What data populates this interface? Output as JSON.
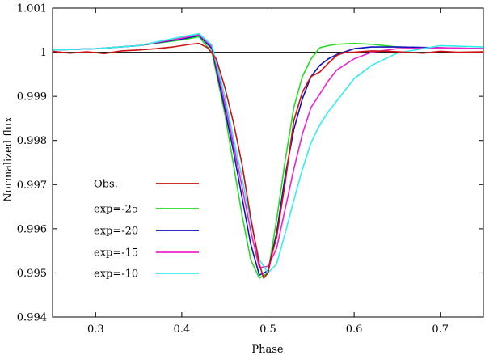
{
  "chart_data": {
    "type": "line",
    "title": "",
    "xlabel": "Phase",
    "ylabel": "Normalized flux",
    "xlim": [
      0.25,
      0.75
    ],
    "ylim": [
      0.994,
      1.001
    ],
    "x_ticks": [
      0.3,
      0.4,
      0.5,
      0.6,
      0.7
    ],
    "x_tick_labels": [
      "0.3",
      "0.4",
      "0.5",
      "0.6",
      "0.7"
    ],
    "y_ticks": [
      0.994,
      0.995,
      0.996,
      0.997,
      0.998,
      0.999,
      1.0,
      1.001
    ],
    "y_tick_labels": [
      "0.994",
      "0.995",
      "0.996",
      "0.997",
      "0.998",
      "0.999",
      "1",
      "1.001"
    ],
    "grid": false,
    "legend_position": "lower-left",
    "reference_line": {
      "y": 1.0,
      "color": "#000000"
    },
    "series": [
      {
        "name": "Obs.",
        "color": "#cc1111",
        "x": [
          0.25,
          0.27,
          0.29,
          0.31,
          0.33,
          0.35,
          0.37,
          0.39,
          0.41,
          0.42,
          0.43,
          0.44,
          0.45,
          0.46,
          0.47,
          0.48,
          0.49,
          0.495,
          0.5,
          0.505,
          0.51,
          0.52,
          0.53,
          0.54,
          0.55,
          0.56,
          0.57,
          0.58,
          0.59,
          0.6,
          0.62,
          0.64,
          0.66,
          0.68,
          0.7,
          0.72,
          0.75
        ],
        "y": [
          1.00002,
          0.99998,
          1.00001,
          0.99997,
          1.00003,
          1.00005,
          1.00008,
          1.00012,
          1.00018,
          1.0002,
          1.0001,
          0.99985,
          0.9992,
          0.9984,
          0.99745,
          0.99625,
          0.9952,
          0.99488,
          0.995,
          0.99545,
          0.9958,
          0.99705,
          0.99845,
          0.9991,
          0.99945,
          0.99955,
          0.99975,
          0.99993,
          1.0,
          1.0,
          1.00003,
          1.00002,
          1.0,
          0.99998,
          1.00002,
          1.0,
          1.00001
        ]
      },
      {
        "name": "exp=-25",
        "color": "#22dd22",
        "x": [
          0.25,
          0.3,
          0.35,
          0.4,
          0.42,
          0.435,
          0.45,
          0.46,
          0.47,
          0.48,
          0.49,
          0.5,
          0.51,
          0.52,
          0.53,
          0.54,
          0.55,
          0.56,
          0.57,
          0.58,
          0.6,
          0.62,
          0.65,
          0.7,
          0.75
        ],
        "y": [
          1.00005,
          1.00008,
          1.00015,
          1.00028,
          1.00035,
          1.0,
          0.9986,
          0.99745,
          0.9963,
          0.9953,
          0.99488,
          0.995,
          0.9962,
          0.99755,
          0.99875,
          0.99945,
          0.99985,
          1.0001,
          1.00015,
          1.00018,
          1.0002,
          1.00018,
          1.00012,
          1.00008,
          1.00008
        ]
      },
      {
        "name": "exp=-20",
        "color": "#1111bb",
        "x": [
          0.25,
          0.3,
          0.35,
          0.4,
          0.42,
          0.435,
          0.45,
          0.46,
          0.47,
          0.48,
          0.49,
          0.5,
          0.51,
          0.52,
          0.53,
          0.54,
          0.55,
          0.56,
          0.57,
          0.58,
          0.6,
          0.62,
          0.65,
          0.7,
          0.75
        ],
        "y": [
          1.00005,
          1.00008,
          1.00015,
          1.0003,
          1.00038,
          1.00008,
          0.9987,
          0.99775,
          0.9967,
          0.99565,
          0.99495,
          0.99505,
          0.9959,
          0.9972,
          0.99825,
          0.99895,
          0.99945,
          0.9997,
          0.99985,
          0.99995,
          1.00008,
          1.00012,
          1.00012,
          1.0001,
          1.00008
        ]
      },
      {
        "name": "exp=-15",
        "color": "#ee22cc",
        "x": [
          0.25,
          0.3,
          0.35,
          0.4,
          0.42,
          0.435,
          0.45,
          0.46,
          0.47,
          0.48,
          0.49,
          0.5,
          0.51,
          0.52,
          0.53,
          0.54,
          0.55,
          0.56,
          0.57,
          0.58,
          0.6,
          0.62,
          0.65,
          0.7,
          0.75
        ],
        "y": [
          1.00005,
          1.00008,
          1.00015,
          1.00032,
          1.0004,
          1.00012,
          0.99885,
          0.9979,
          0.99695,
          0.99595,
          0.99512,
          0.99515,
          0.99555,
          0.99645,
          0.99735,
          0.99815,
          0.99875,
          0.99905,
          0.99935,
          0.9996,
          0.99985,
          1.0,
          1.00008,
          1.0001,
          1.00008
        ]
      },
      {
        "name": "exp=-10",
        "color": "#33eeee",
        "x": [
          0.25,
          0.3,
          0.35,
          0.4,
          0.42,
          0.435,
          0.45,
          0.46,
          0.47,
          0.48,
          0.49,
          0.5,
          0.51,
          0.52,
          0.53,
          0.54,
          0.55,
          0.56,
          0.57,
          0.58,
          0.6,
          0.62,
          0.65,
          0.7,
          0.75
        ],
        "y": [
          1.00005,
          1.00008,
          1.00015,
          1.00035,
          1.00042,
          1.00016,
          0.999,
          0.99805,
          0.99715,
          0.99615,
          0.9953,
          0.995,
          0.9952,
          0.9959,
          0.99665,
          0.99735,
          0.99795,
          0.99835,
          0.99865,
          0.9989,
          0.9994,
          0.9997,
          0.99998,
          1.00015,
          1.00012
        ]
      }
    ]
  }
}
